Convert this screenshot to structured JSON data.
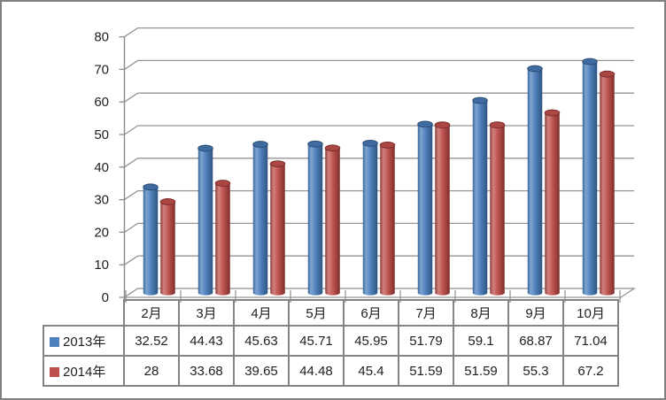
{
  "chart_data": {
    "type": "bar",
    "style": "3d-cylinder",
    "title": "",
    "categories": [
      "2月",
      "3月",
      "4月",
      "5月",
      "6月",
      "7月",
      "8月",
      "9月",
      "10月"
    ],
    "series": [
      {
        "name": "2013年",
        "color": "#4F81BD",
        "gradient": [
          "#39679A",
          "#7FA5D1",
          "#4E7FBA",
          "#2F5580"
        ],
        "top_fill": "#3E6CA2",
        "top_rim": "#2A4D74",
        "values": [
          32.52,
          44.43,
          45.63,
          45.71,
          45.95,
          51.79,
          59.1,
          68.87,
          71.04
        ]
      },
      {
        "name": "2014年",
        "color": "#C0504D",
        "gradient": [
          "#8E3B38",
          "#D2817E",
          "#BE534F",
          "#7D2F2D"
        ],
        "top_fill": "#AC4643",
        "top_rim": "#7B2E2C",
        "values": [
          28,
          33.68,
          39.65,
          44.48,
          45.4,
          51.59,
          51.59,
          55.3,
          67.2
        ]
      }
    ],
    "yticks": [
      0,
      10,
      20,
      30,
      40,
      50,
      60,
      70,
      80
    ],
    "ylim": [
      0,
      80
    ],
    "ystep": 10,
    "grid": true,
    "legend_position": "table-left"
  },
  "colors": {
    "background": "#FFFFFF",
    "frame_border": "#7F7F7F",
    "gridline": "#969696",
    "axis": "#8A8A8A",
    "table_border": "#848484",
    "text": "#1F1F1F"
  }
}
